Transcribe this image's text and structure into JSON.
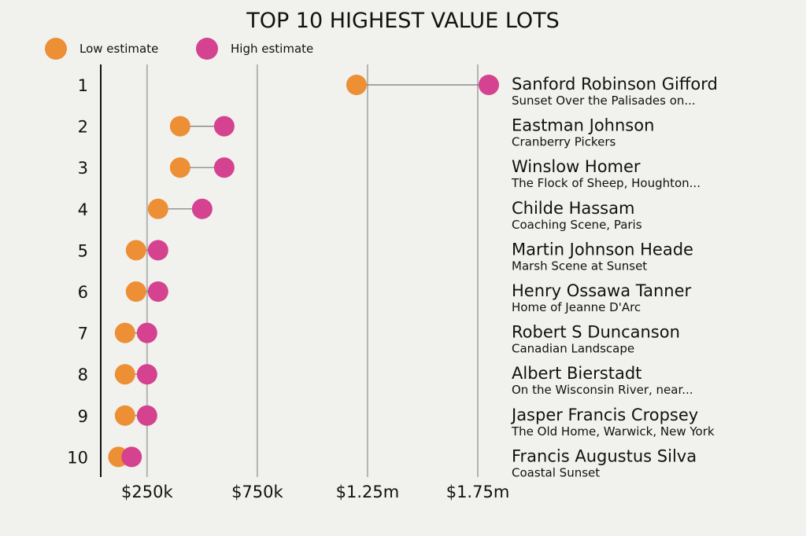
{
  "chart_data": {
    "type": "dumbbell",
    "title": "TOP 10 HIGHEST VALUE LOTS",
    "legend": [
      {
        "name": "Low estimate",
        "color": "#ec8f35"
      },
      {
        "name": "High estimate",
        "color": "#d5428f"
      }
    ],
    "x_ticks": [
      {
        "value": 250000,
        "label": "$250k"
      },
      {
        "value": 750000,
        "label": "$750k"
      },
      {
        "value": 1250000,
        "label": "$1.25m"
      },
      {
        "value": 1750000,
        "label": "$1.75m"
      }
    ],
    "xlim": [
      40000,
      1800000
    ],
    "rows": [
      {
        "rank": "1",
        "artist": "Sanford Robinson Gifford",
        "work": "Sunset Over the Palisades on...",
        "low": 1200000,
        "high": 1800000
      },
      {
        "rank": "2",
        "artist": "Eastman Johnson",
        "work": "Cranberry Pickers",
        "low": 400000,
        "high": 600000
      },
      {
        "rank": "3",
        "artist": "Winslow Homer",
        "work": "The Flock of Sheep, Houghton...",
        "low": 400000,
        "high": 600000
      },
      {
        "rank": "4",
        "artist": "Childe Hassam",
        "work": "Coaching Scene, Paris",
        "low": 300000,
        "high": 500000
      },
      {
        "rank": "5",
        "artist": "Martin Johnson Heade",
        "work": "Marsh Scene at Sunset",
        "low": 200000,
        "high": 300000
      },
      {
        "rank": "6",
        "artist": "Henry Ossawa Tanner",
        "work": "Home of Jeanne D'Arc",
        "low": 200000,
        "high": 300000
      },
      {
        "rank": "7",
        "artist": "Robert S Duncanson",
        "work": "Canadian Landscape",
        "low": 150000,
        "high": 250000
      },
      {
        "rank": "8",
        "artist": "Albert Bierstadt",
        "work": "On the Wisconsin River, near...",
        "low": 150000,
        "high": 250000
      },
      {
        "rank": "9",
        "artist": "Jasper Francis Cropsey",
        "work": "The Old Home, Warwick, New York",
        "low": 150000,
        "high": 250000
      },
      {
        "rank": "10",
        "artist": "Francis Augustus Silva",
        "work": "Coastal Sunset",
        "low": 120000,
        "high": 180000
      }
    ]
  }
}
